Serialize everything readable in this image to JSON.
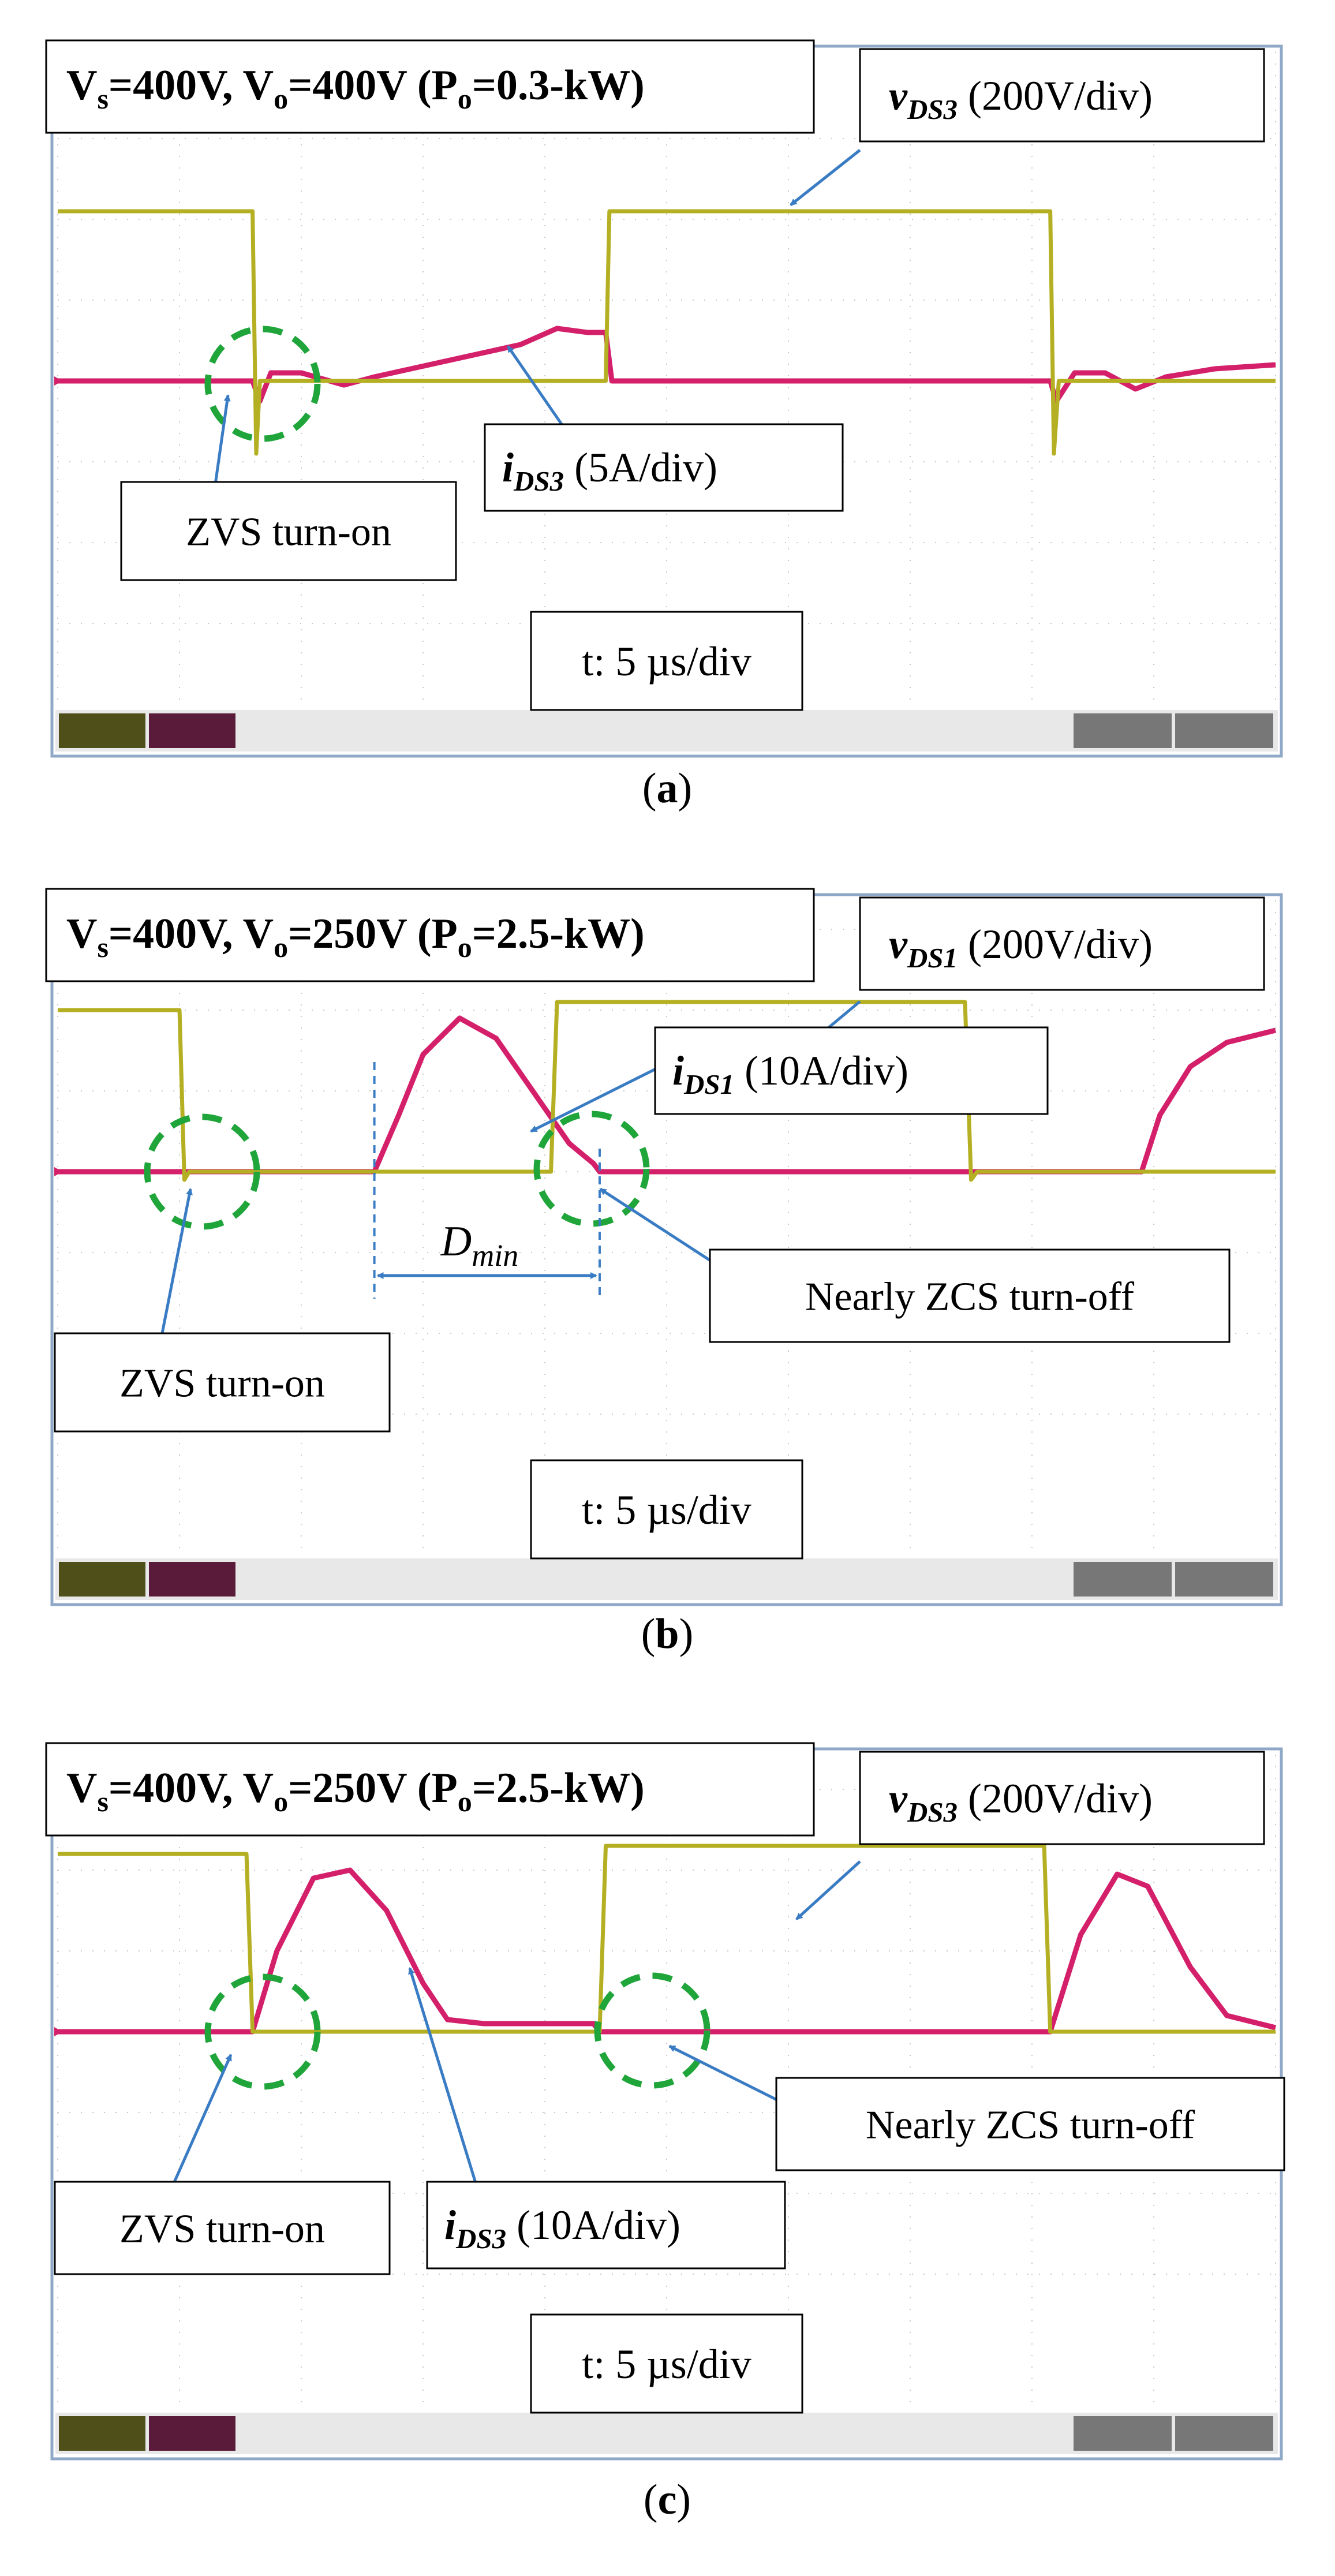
{
  "colors": {
    "voltage": "#b5b023",
    "current": "#d4206a",
    "grid": "#c8c8c8",
    "frame": "#8fa8c8",
    "zvs_circle": "#1fa53a",
    "arrow": "#3a7cc4",
    "panel_bg": "#ffffff",
    "status_bg": "#111111"
  },
  "panels": [
    {
      "caption": "a",
      "title": {
        "vs": "V",
        "vs_sub": "s",
        "mid1": "=400V, V",
        "vo_sub": "o",
        "mid2": "=400V (P",
        "po_sub": "o",
        "end": "=0.3-kW)"
      },
      "voltage_label": {
        "sym": "v",
        "sub": "DS3",
        "scale": " (200V/div)"
      },
      "current_label": {
        "sym": "i",
        "sub": "DS3",
        "scale": " (5A/div)"
      },
      "timebase": "t: 5 µs/div",
      "zvs_label": "ZVS turn-on",
      "zcs_label": ""
    },
    {
      "caption": "b",
      "title": {
        "vs": "V",
        "vs_sub": "s",
        "mid1": "=400V, V",
        "vo_sub": "o",
        "mid2": "=250V (P",
        "po_sub": "o",
        "end": "=2.5-kW)"
      },
      "voltage_label": {
        "sym": "v",
        "sub": "DS1",
        "scale": " (200V/div)"
      },
      "current_label": {
        "sym": "i",
        "sub": "DS1",
        "scale": " (10A/div)"
      },
      "timebase": "t: 5 µs/div",
      "zvs_label": "ZVS turn-on",
      "zcs_label": "Nearly ZCS turn-off",
      "dmin_label": {
        "sym": "D",
        "sub": "min"
      }
    },
    {
      "caption": "c",
      "title": {
        "vs": "V",
        "vs_sub": "s",
        "mid1": "=400V, V",
        "vo_sub": "o",
        "mid2": "=250V (P",
        "po_sub": "o",
        "end": "=2.5-kW)"
      },
      "voltage_label": {
        "sym": "v",
        "sub": "DS3",
        "scale": " (200V/div)"
      },
      "current_label": {
        "sym": "i",
        "sub": "DS3",
        "scale": " (10A/div)"
      },
      "timebase": "t: 5 µs/div",
      "zvs_label": "ZVS turn-on",
      "zcs_label": "Nearly ZCS turn-off"
    }
  ],
  "chart_data": [
    {
      "type": "line",
      "panel": "a",
      "x_unit": "div",
      "xlim": [
        0,
        10
      ],
      "ylim": [
        -4,
        4
      ],
      "grid": true,
      "series": [
        {
          "name": "vDS3",
          "points": [
            [
              0,
              2.1
            ],
            [
              1.6,
              2.1
            ],
            [
              1.63,
              -0.9
            ],
            [
              1.66,
              0
            ],
            [
              4.5,
              0
            ],
            [
              4.53,
              2.1
            ],
            [
              8.15,
              2.1
            ],
            [
              8.18,
              -0.9
            ],
            [
              8.22,
              0
            ],
            [
              10,
              0
            ]
          ]
        },
        {
          "name": "iDS3",
          "points": [
            [
              0,
              0
            ],
            [
              1.6,
              0
            ],
            [
              1.66,
              -0.25
            ],
            [
              1.75,
              0.1
            ],
            [
              2.0,
              0.1
            ],
            [
              2.35,
              -0.05
            ],
            [
              2.6,
              0.05
            ],
            [
              3.2,
              0.25
            ],
            [
              3.8,
              0.45
            ],
            [
              4.1,
              0.65
            ],
            [
              4.35,
              0.6
            ],
            [
              4.5,
              0.6
            ],
            [
              4.55,
              0
            ],
            [
              8.15,
              0
            ],
            [
              8.2,
              -0.25
            ],
            [
              8.35,
              0.1
            ],
            [
              8.6,
              0.1
            ],
            [
              8.85,
              -0.1
            ],
            [
              9.1,
              0.05
            ],
            [
              9.5,
              0.15
            ],
            [
              10,
              0.2
            ]
          ]
        }
      ]
    },
    {
      "type": "line",
      "panel": "b",
      "x_unit": "div",
      "xlim": [
        0,
        10
      ],
      "ylim": [
        -4,
        4
      ],
      "grid": true,
      "series": [
        {
          "name": "vDS1",
          "points": [
            [
              0,
              2.0
            ],
            [
              1.0,
              2.0
            ],
            [
              1.04,
              -0.1
            ],
            [
              1.08,
              0
            ],
            [
              4.05,
              0
            ],
            [
              4.1,
              2.1
            ],
            [
              7.45,
              2.1
            ],
            [
              7.5,
              -0.1
            ],
            [
              7.55,
              0
            ],
            [
              10,
              0
            ]
          ]
        },
        {
          "name": "iDS1",
          "points": [
            [
              0,
              0
            ],
            [
              2.6,
              0
            ],
            [
              2.8,
              0.7
            ],
            [
              3.0,
              1.45
            ],
            [
              3.3,
              1.9
            ],
            [
              3.6,
              1.65
            ],
            [
              3.9,
              1.0
            ],
            [
              4.2,
              0.35
            ],
            [
              4.4,
              0.1
            ],
            [
              4.45,
              0
            ],
            [
              8.9,
              0
            ],
            [
              9.05,
              0.7
            ],
            [
              9.3,
              1.3
            ],
            [
              9.6,
              1.6
            ],
            [
              10,
              1.75
            ]
          ]
        }
      ]
    },
    {
      "type": "line",
      "panel": "c",
      "x_unit": "div",
      "xlim": [
        0,
        10
      ],
      "ylim": [
        -4,
        4
      ],
      "grid": true,
      "series": [
        {
          "name": "vDS3",
          "points": [
            [
              0,
              2.2
            ],
            [
              1.55,
              2.2
            ],
            [
              1.6,
              0
            ],
            [
              4.45,
              0
            ],
            [
              4.5,
              2.3
            ],
            [
              8.1,
              2.3
            ],
            [
              8.15,
              0
            ],
            [
              10,
              0
            ]
          ]
        },
        {
          "name": "iDS3",
          "points": [
            [
              0,
              0
            ],
            [
              1.6,
              0
            ],
            [
              1.8,
              1.0
            ],
            [
              2.1,
              1.9
            ],
            [
              2.4,
              2.0
            ],
            [
              2.7,
              1.5
            ],
            [
              3.0,
              0.6
            ],
            [
              3.2,
              0.15
            ],
            [
              3.5,
              0.1
            ],
            [
              4.4,
              0.1
            ],
            [
              4.45,
              0
            ],
            [
              8.15,
              0
            ],
            [
              8.4,
              1.2
            ],
            [
              8.7,
              1.95
            ],
            [
              8.95,
              1.8
            ],
            [
              9.3,
              0.8
            ],
            [
              9.6,
              0.2
            ],
            [
              10,
              0.05
            ]
          ]
        }
      ]
    }
  ]
}
